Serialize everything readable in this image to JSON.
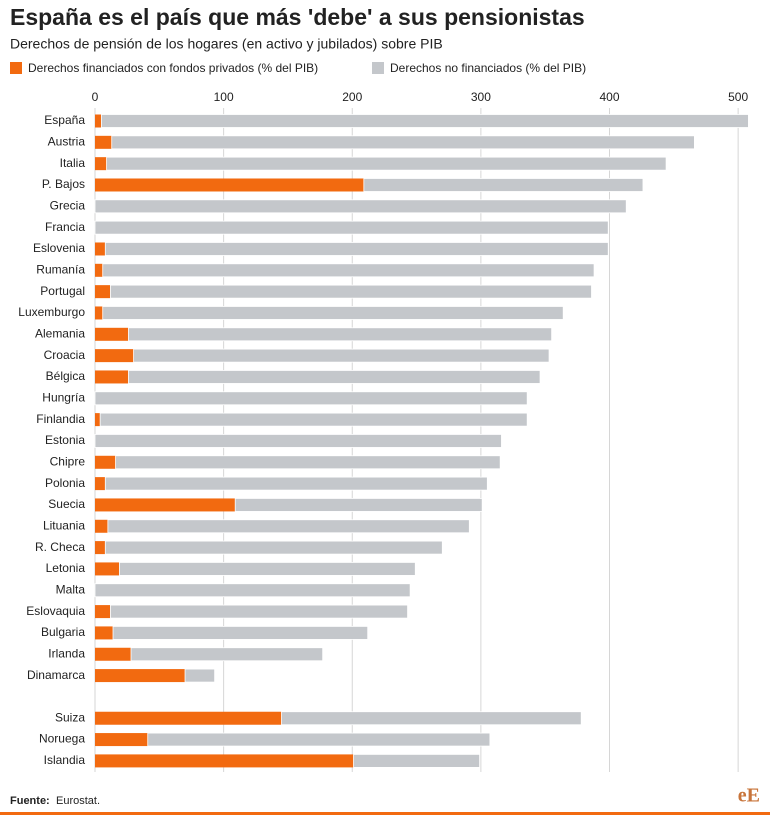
{
  "chart_data": {
    "type": "stacked_bar_horizontal",
    "title": "España es el país que más 'debe' a sus pensionistas",
    "subtitle": "Derechos de pensión de los hogares (en activo y jubilados) sobre PIB",
    "categories": [
      "España",
      "Austria",
      "Italia",
      "P. Bajos",
      "Grecia",
      "Francia",
      "Eslovenia",
      "Rumanía",
      "Portugal",
      "Luxemburgo",
      "Alemania",
      "Croacia",
      "Bélgica",
      "Hungría",
      "Finlandia",
      "Estonia",
      "Chipre",
      "Polonia",
      "Suecia",
      "Lituania",
      "R. Checa",
      "Letonia",
      "Malta",
      "Eslovaquia",
      "Bulgaria",
      "Irlanda",
      "Dinamarca",
      null,
      "Suiza",
      "Noruega",
      "Islandia"
    ],
    "series": [
      {
        "name": "Derechos financiados con fondos privados (% del PIB)",
        "color": "#f26a10",
        "values": [
          5,
          13,
          9,
          209,
          0,
          0,
          8,
          6,
          12,
          6,
          26,
          30,
          26,
          0,
          4,
          0,
          16,
          8,
          109,
          10,
          8,
          19,
          0,
          12,
          14,
          28,
          70,
          null,
          145,
          41,
          201
        ]
      },
      {
        "name": "Derechos no financiados (% del PIB)",
        "color": "#c4c7cb",
        "values": [
          503,
          453,
          435,
          217,
          413,
          399,
          391,
          382,
          374,
          358,
          329,
          323,
          320,
          336,
          332,
          316,
          299,
          297,
          192,
          281,
          262,
          230,
          245,
          231,
          198,
          149,
          23,
          null,
          233,
          266,
          98
        ]
      }
    ],
    "xlim": [
      0,
      510
    ],
    "xticks": [
      0,
      100,
      200,
      300,
      400,
      500
    ],
    "grid": true,
    "source_label": "Fuente:",
    "source": "Eurostat.",
    "logo": "eE"
  }
}
